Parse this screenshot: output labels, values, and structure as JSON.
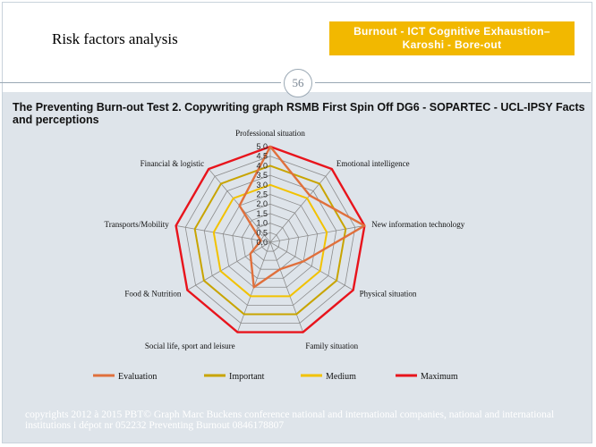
{
  "page": {
    "title": "Risk factors analysis",
    "badge_line1": "Burnout  - ICT Cognitive Exhaustion–",
    "badge_line2": "Karoshi - Bore-out",
    "page_number": "56"
  },
  "chart_data": {
    "type": "radar",
    "title": "The Preventing Burn-out Test 2. Copywriting graph RSMB First Spin Off DG6 - SOPARTEC - UCL-IPSY Facts and perceptions",
    "axes": [
      "Professional situation",
      "Emotional intelligence",
      "New information technology",
      "Physical situation",
      "Family situation",
      "Social life, sport and leisure",
      "Food & Nutrition",
      "Transports/Mobility",
      "Financial & logistic"
    ],
    "scale": {
      "min": 0,
      "max": 5,
      "step": 0.5,
      "tick_labels": [
        "0.0",
        "0.5",
        "1.0",
        "1.5",
        "2.0",
        "2.5",
        "3.0",
        "3.5",
        "4.0",
        "4.5",
        "5.0"
      ]
    },
    "series": [
      {
        "name": "Evaluation",
        "color": "#e0703c",
        "values": [
          5.0,
          3.2,
          5.0,
          2.0,
          1.5,
          2.5,
          1.2,
          0.5,
          2.5
        ]
      },
      {
        "name": "Important",
        "color": "#c8a400",
        "values": [
          4.0,
          4.0,
          4.0,
          4.0,
          4.0,
          4.0,
          4.0,
          4.0,
          4.0
        ]
      },
      {
        "name": "Medium",
        "color": "#f2c200",
        "values": [
          3.0,
          3.0,
          3.0,
          3.0,
          3.0,
          3.0,
          3.0,
          3.0,
          3.0
        ]
      },
      {
        "name": "Maximum",
        "color": "#e8141c",
        "values": [
          5.0,
          5.0,
          5.0,
          5.0,
          5.0,
          5.0,
          5.0,
          5.0,
          5.0
        ]
      }
    ],
    "legend_position": "bottom",
    "grid": true
  },
  "footer": {
    "line1": "copyrights 2012 à 2015 PBT© Graph Marc Buckens conference national and international companies, national and international",
    "line2": "institutions i dépot nr  052232 Preventing Burnout 0846178807"
  }
}
